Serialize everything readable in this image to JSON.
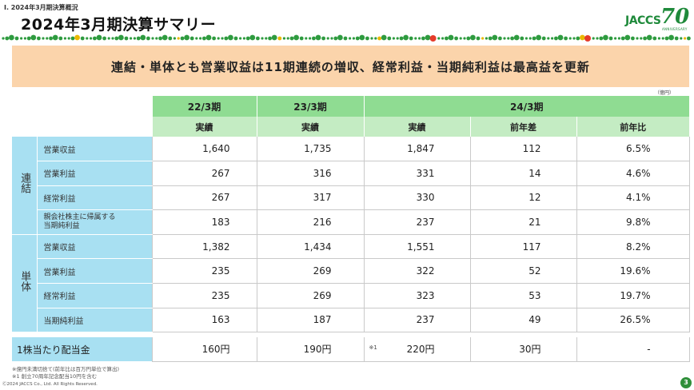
{
  "header": {
    "section": "Ⅰ. 2024年3月期決算概況",
    "title": "2024年3月期決算サマリー",
    "logo_word": "JACCS",
    "logo_number": "70",
    "logo_sub": "ANNIVERSARY"
  },
  "banner": {
    "text": "連結・単体とも営業収益は11期連続の増収、経常利益・当期純利益は最高益を更新"
  },
  "unit_label": "（億円）",
  "table": {
    "year_headers": [
      "22/3期",
      "23/3期",
      "24/3期"
    ],
    "sub_headers": [
      "実績",
      "実績",
      "実績",
      "前年差",
      "前年比"
    ],
    "groups": [
      {
        "label": "連結",
        "rows": [
          {
            "item": "営業収益",
            "values": [
              "1,640",
              "1,735",
              "1,847",
              "112",
              "6.5%"
            ]
          },
          {
            "item": "営業利益",
            "values": [
              "267",
              "316",
              "331",
              "14",
              "4.6%"
            ]
          },
          {
            "item": "経常利益",
            "values": [
              "267",
              "317",
              "330",
              "12",
              "4.1%"
            ]
          },
          {
            "item_line1": "親会社株主に帰属する",
            "item_line2": "当期純利益",
            "values": [
              "183",
              "216",
              "237",
              "21",
              "9.8%"
            ]
          }
        ]
      },
      {
        "label": "単体",
        "rows": [
          {
            "item": "営業収益",
            "values": [
              "1,382",
              "1,434",
              "1,551",
              "117",
              "8.2%"
            ]
          },
          {
            "item": "営業利益",
            "values": [
              "235",
              "269",
              "322",
              "52",
              "19.6%"
            ]
          },
          {
            "item": "経常利益",
            "values": [
              "235",
              "269",
              "323",
              "53",
              "19.7%"
            ]
          },
          {
            "item": "当期純利益",
            "values": [
              "163",
              "187",
              "237",
              "49",
              "26.5%"
            ]
          }
        ]
      }
    ],
    "dividend": {
      "label": "1株当たり配当金",
      "values": [
        "160円",
        "190円",
        "220円",
        "30円",
        "-"
      ],
      "ref_mark": "※1"
    }
  },
  "footnotes": [
    "※億円未満切捨て(前年比は百万円単位で算出)",
    "※1 創立70周年記念配当10円を含む"
  ],
  "copyright": "Ⓒ2024 JACCS Co., Ltd. All Rights Reserved.",
  "page_number": "3",
  "colors": {
    "banner": "#fbd4ab",
    "header_year": "#8fdc92",
    "header_sub": "#c4ecc3",
    "row_label": "#a8e0f2",
    "dots_green": "#2e9b3f",
    "dots_accent": "#e53b2a",
    "dots_yellow": "#e9b800"
  }
}
